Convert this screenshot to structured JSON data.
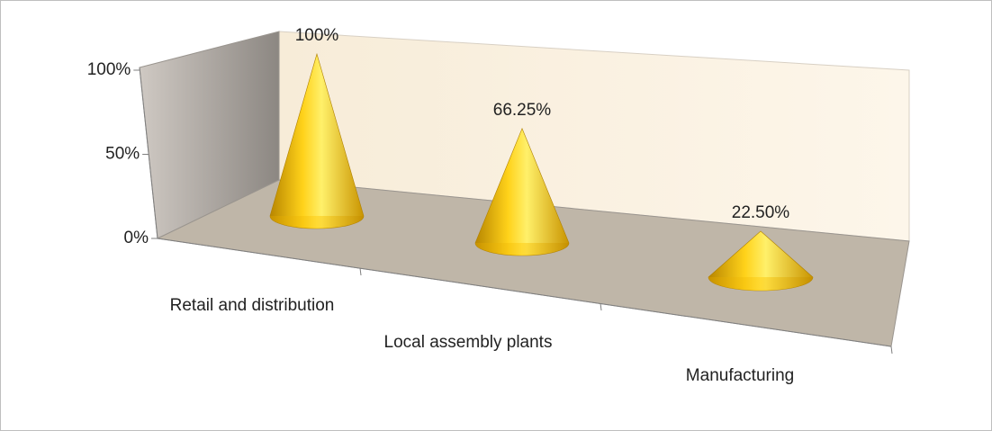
{
  "chart_data": {
    "type": "cone",
    "categories": [
      "Retail and distribution",
      "Local assembly plants",
      "Manufacturing"
    ],
    "values": [
      100,
      66.25,
      22.5
    ],
    "value_labels": [
      "100%",
      "66.25%",
      "22.50%"
    ],
    "color": "#f2c200",
    "ylim": [
      0,
      100
    ],
    "yticks": [
      {
        "value": 0,
        "label": "0%"
      },
      {
        "value": 50,
        "label": "50%"
      },
      {
        "value": 100,
        "label": "100%"
      }
    ]
  }
}
